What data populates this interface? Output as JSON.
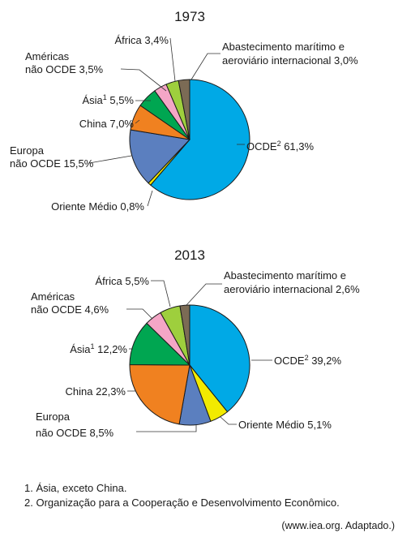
{
  "chart_data": [
    {
      "type": "pie",
      "title": "1973",
      "colors": [
        "#00a9e6",
        "#f2ea00",
        "#5b7fbf",
        "#f08120",
        "#00a651",
        "#f4a6c6",
        "#9ecf3d",
        "#7b6b55"
      ],
      "slices": [
        {
          "label": "OCDE",
          "sup": "2",
          "value": 61.3,
          "text": "61,3%"
        },
        {
          "label": "Oriente Médio",
          "value": 0.8,
          "text": "0,8%"
        },
        {
          "label": "Europa não OCDE",
          "value": 15.5,
          "text": "15,5%"
        },
        {
          "label": "China",
          "value": 7.0,
          "text": "7,0%"
        },
        {
          "label": "Ásia",
          "sup": "1",
          "value": 5.5,
          "text": "5,5%"
        },
        {
          "label": "Américas não OCDE",
          "value": 3.5,
          "text": "3,5%"
        },
        {
          "label": "África",
          "value": 3.4,
          "text": "3,4%"
        },
        {
          "label": "Abastecimento marítimo e aeroviário internacional",
          "value": 3.0,
          "text": "3,0%"
        }
      ]
    },
    {
      "type": "pie",
      "title": "2013",
      "colors": [
        "#00a9e6",
        "#f2ea00",
        "#5b7fbf",
        "#f08120",
        "#00a651",
        "#f4a6c6",
        "#9ecf3d",
        "#7b6b55"
      ],
      "slices": [
        {
          "label": "OCDE",
          "sup": "2",
          "value": 39.2,
          "text": "39,2%"
        },
        {
          "label": "Oriente Médio",
          "value": 5.1,
          "text": "5,1%"
        },
        {
          "label": "Europa não OCDE",
          "value": 8.5,
          "text": "8,5%"
        },
        {
          "label": "China",
          "value": 22.3,
          "text": "22,3%"
        },
        {
          "label": "Ásia",
          "sup": "1",
          "value": 12.2,
          "text": "12,2%"
        },
        {
          "label": "Américas não OCDE",
          "value": 4.6,
          "text": "4,6%"
        },
        {
          "label": "África",
          "value": 5.5,
          "text": "5,5%"
        },
        {
          "label": "Abastecimento marítimo e aeroviário internacional",
          "value": 2.6,
          "text": "2,6%"
        }
      ]
    }
  ],
  "notes": [
    "1. Ásia, exceto China.",
    "2. Organização para a Cooperação e Desenvolvimento Econômico."
  ],
  "source": "(www.iea.org. Adaptado.)"
}
